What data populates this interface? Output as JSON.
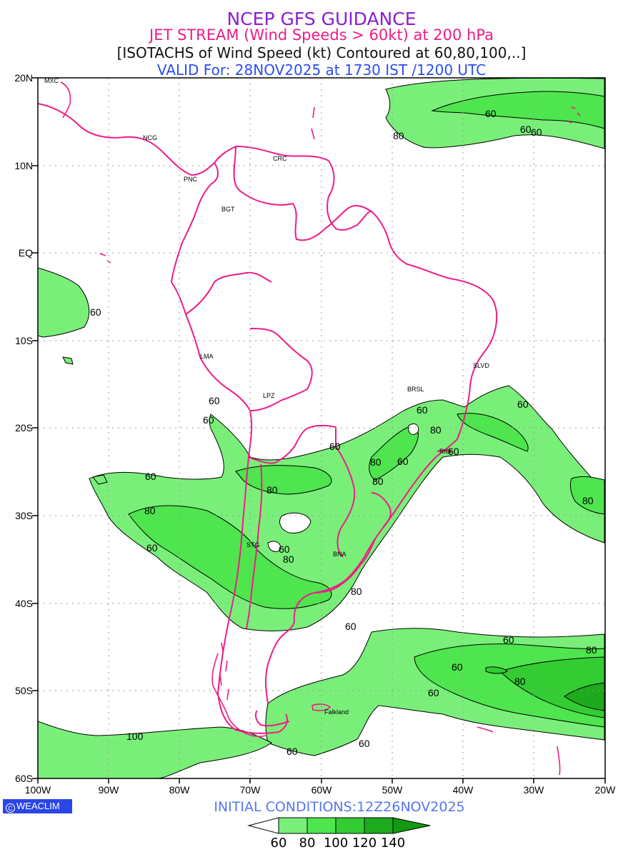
{
  "header": {
    "line1": "NCEP GFS GUIDANCE",
    "line2": "JET STREAM (Wind Speeds > 60kt) at 200 hPa",
    "line3": "[ISOTACHS of Wind Speed (kt) Contoured at 60,80,100,..]",
    "line4": "VALID For: 28NOV2025 at 1730 IST /1200 UTC"
  },
  "lat_labels": [
    "20N",
    "10N",
    "EQ",
    "10S",
    "20S",
    "30S",
    "40S",
    "50S",
    "60S"
  ],
  "lon_labels": [
    "100W",
    "90W",
    "80W",
    "70W",
    "60W",
    "50W",
    "40W",
    "30W",
    "20W"
  ],
  "city_labels": [
    "MXC",
    "NCG",
    "PNC",
    "CRC",
    "BGT",
    "LMA",
    "LPZ",
    "BRSL",
    "SLVD",
    "RIO",
    "STG",
    "BNA",
    "Falkland"
  ],
  "contour_labels": [
    "60",
    "80",
    "60",
    "60",
    "60",
    "60",
    "80",
    "60",
    "80",
    "60",
    "80",
    "60",
    "80",
    "80",
    "80",
    "60",
    "60",
    "80",
    "60",
    "80",
    "60",
    "60",
    "60",
    "80",
    "80",
    "60",
    "60",
    "100",
    "60",
    "60",
    "60",
    "60"
  ],
  "footer": {
    "logo_text": "WEACLIM",
    "initial_conditions": "INITIAL  CONDITIONS:12Z26NOV2025"
  },
  "colorbar": {
    "ticks": [
      "60",
      "80",
      "100",
      "120",
      "140"
    ],
    "colors": [
      "#ffffff",
      "#79ef79",
      "#4ee54e",
      "#33cc33",
      "#1daa1d",
      "#119911"
    ]
  },
  "colors": {
    "border": "#ee1c87",
    "fill_60": "#79ef79",
    "fill_80": "#4ee54e",
    "fill_100": "#33cc33",
    "fill_120": "#1daa1d",
    "contour": "#000000"
  }
}
